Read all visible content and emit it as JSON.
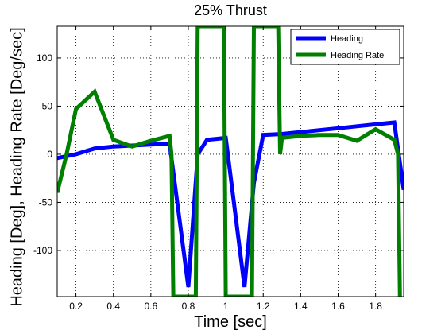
{
  "chart_data": {
    "type": "line",
    "title": "25% Thrust",
    "xlabel": "Time [sec]",
    "ylabel": "Heading [Deg], Heading Rate [Deg/sec]",
    "xlim": [
      0.1,
      1.95
    ],
    "ylim": [
      -148,
      133
    ],
    "xticks": [
      "0.2",
      "0.4",
      "0.6",
      "0.8",
      "1",
      "1.2",
      "1.4",
      "1.6",
      "1.8"
    ],
    "yticks": [
      "-100",
      "-50",
      "0",
      "50",
      "100"
    ],
    "grid": true,
    "legend": "top-right",
    "series": [
      {
        "name": "Heading",
        "color": "#0000ff",
        "x": [
          0.1,
          0.2,
          0.3,
          0.4,
          0.5,
          0.6,
          0.7,
          0.8,
          0.85,
          0.9,
          0.95,
          1.0,
          1.1,
          1.15,
          1.2,
          1.3,
          1.4,
          1.5,
          1.6,
          1.7,
          1.8,
          1.9,
          1.95
        ],
        "y": [
          -4,
          0,
          6,
          8,
          9,
          10,
          11,
          -138,
          0,
          15,
          16,
          17,
          -138,
          -30,
          20,
          21,
          23,
          25,
          27,
          29,
          31,
          33,
          -37
        ]
      },
      {
        "name": "Heading Rate",
        "color": "#007f00",
        "x": [
          0.1,
          0.15,
          0.2,
          0.3,
          0.4,
          0.5,
          0.6,
          0.7,
          0.71,
          0.72,
          0.84,
          0.85,
          0.99,
          1.0,
          1.14,
          1.15,
          1.28,
          1.29,
          1.3,
          1.4,
          1.5,
          1.6,
          1.7,
          1.8,
          1.9,
          1.92,
          1.93
        ],
        "y": [
          -40,
          0,
          47,
          65,
          15,
          8,
          14,
          19,
          0,
          -148,
          -148,
          133,
          133,
          -148,
          -148,
          133,
          133,
          0,
          17,
          19,
          20,
          20,
          14,
          26,
          15,
          0,
          -148
        ]
      }
    ]
  }
}
